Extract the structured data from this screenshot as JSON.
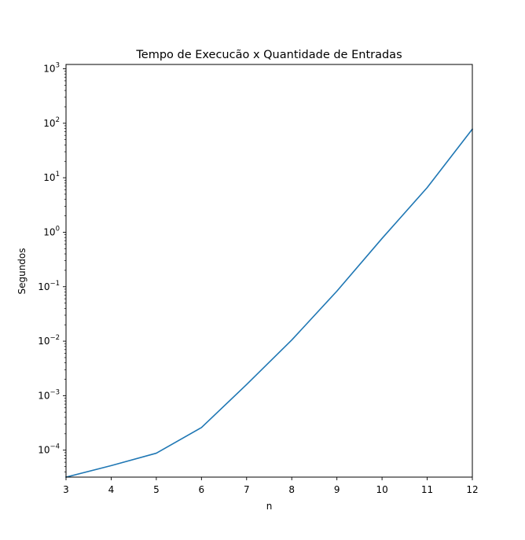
{
  "chart_data": {
    "type": "line",
    "title": "Tempo de Execucão x Quantidade de Entradas",
    "xlabel": "n",
    "ylabel": "Segundos",
    "yscale": "log",
    "grid": false,
    "legend": "none",
    "xlim": [
      3,
      12
    ],
    "ylim": [
      3.2e-05,
      1200
    ],
    "x": [
      3,
      4,
      5,
      6,
      7,
      8,
      9,
      10,
      11,
      12
    ],
    "x_ticks": [
      "3",
      "4",
      "5",
      "6",
      "7",
      "8",
      "9",
      "10",
      "11",
      "12"
    ],
    "y_ticks": [
      {
        "base": "10",
        "exp": "−4"
      },
      {
        "base": "10",
        "exp": "−3"
      },
      {
        "base": "10",
        "exp": "−2"
      },
      {
        "base": "10",
        "exp": "−1"
      },
      {
        "base": "10",
        "exp": "0"
      },
      {
        "base": "10",
        "exp": "1"
      },
      {
        "base": "10",
        "exp": "2"
      },
      {
        "base": "10",
        "exp": "3"
      }
    ],
    "series": [
      {
        "color": "#1f77b4",
        "values": [
          3.2e-05,
          5.2e-05,
          8.8e-05,
          0.00026,
          0.0016,
          0.0105,
          0.083,
          0.77,
          6.6,
          78
        ]
      }
    ]
  }
}
